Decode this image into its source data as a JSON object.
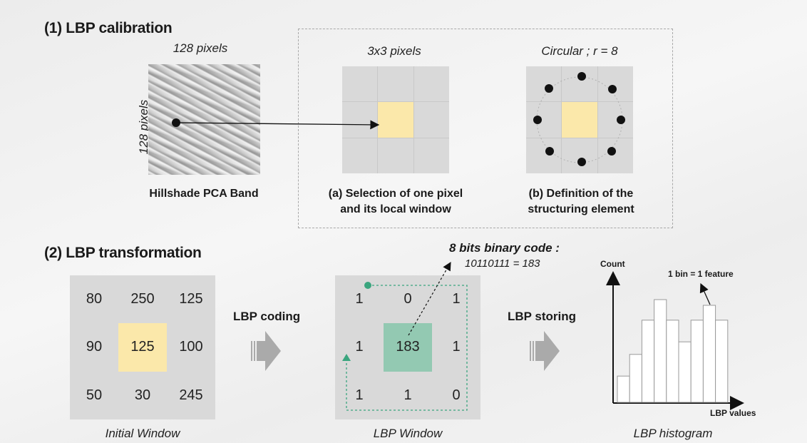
{
  "section1": {
    "title": "(1) LBP calibration",
    "hillshade": {
      "top_label": "128 pixels",
      "side_label": "128 pixels",
      "caption": "Hillshade PCA Band"
    },
    "panel_a": {
      "top_label": "3x3 pixels",
      "caption_line1": "(a) Selection of one pixel",
      "caption_line2": "and its local window"
    },
    "panel_b": {
      "top_label": "Circular ; r = 8",
      "caption_line1": "(b) Definition of the",
      "caption_line2": "structuring element"
    }
  },
  "section2": {
    "title": "(2) LBP transformation",
    "initial_window": {
      "values": [
        "80",
        "250",
        "125",
        "90",
        "125",
        "100",
        "50",
        "30",
        "245"
      ],
      "caption": "Initial Window"
    },
    "lbp_coding_label": "LBP coding",
    "lbp_window": {
      "values": [
        "1",
        "0",
        "1",
        "1",
        "183",
        "1",
        "1",
        "1",
        "0"
      ],
      "caption": "LBP Window"
    },
    "binary_code": {
      "title": "8 bits binary code :",
      "value": "10110111 = 183"
    },
    "lbp_storing_label": "LBP storing",
    "histogram": {
      "y_label": "Count",
      "x_label": "LBP values",
      "annotation": "1 bin = 1 feature",
      "caption": "LBP histogram",
      "bin_heights": [
        0.23,
        0.42,
        0.72,
        0.9,
        0.72,
        0.53,
        0.72,
        0.85,
        0.72
      ]
    }
  },
  "colors": {
    "highlight_yellow": "#fbe8aa",
    "highlight_green": "#93c9b2",
    "path_green": "#3aa57e"
  }
}
